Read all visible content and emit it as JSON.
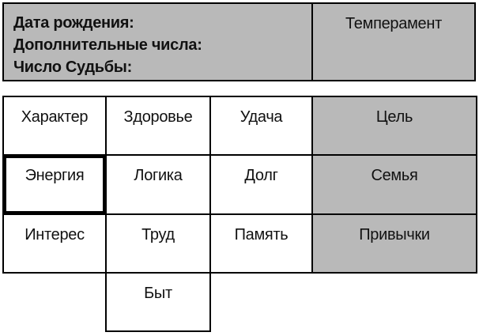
{
  "header": {
    "birth_date_label": "Дата рождения:",
    "additional_numbers_label": "Дополнительные числа:",
    "destiny_number_label": "Число Судьбы:",
    "temperament_label": "Темперамент"
  },
  "grid": {
    "cells": {
      "character": "Характер",
      "health": "Здоровье",
      "luck": "Удача",
      "goal": "Цель",
      "energy": "Энергия",
      "logic": "Логика",
      "duty": "Долг",
      "family": "Семья",
      "interest": "Интерес",
      "labor": "Труд",
      "memory": "Память",
      "habits": "Привычки",
      "household": "Быт"
    },
    "shaded_cells": [
      "goal",
      "family",
      "habits"
    ],
    "highlighted_cell": "energy"
  },
  "colors": {
    "shaded_fill": "#b9b9b9",
    "border": "#000000",
    "cell_background": "#ffffff",
    "text": "#111111"
  }
}
